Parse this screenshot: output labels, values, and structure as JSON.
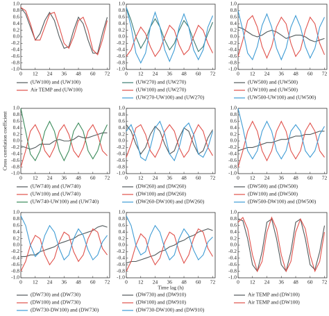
{
  "chart_data": [
    {
      "type": "line",
      "x": [
        0,
        4,
        8,
        12,
        16,
        20,
        24,
        28,
        32,
        36,
        40,
        44,
        48,
        52,
        56,
        60,
        64,
        68,
        72
      ],
      "xlim": [
        0,
        74
      ],
      "xticks": [
        0,
        12,
        24,
        36,
        48,
        60,
        72
      ],
      "ylim": [
        -1,
        1
      ],
      "yticks": [
        {
          "value": -1,
          "label": "-1.0"
        },
        -0.8,
        -0.6,
        -0.4,
        -0.2,
        {
          "value": 0,
          "label": "0.0"
        },
        0.2,
        0.4,
        0.6,
        0.8,
        {
          "value": 1,
          "label": "1.0"
        }
      ],
      "series": [
        {
          "name": "(UW100) and (UW100)",
          "color": "#50585a",
          "values": [
            0.9,
            0.7,
            0.3,
            -0.1,
            0.1,
            0.5,
            0.75,
            0.5,
            0.0,
            -0.35,
            -0.3,
            0.2,
            0.6,
            0.4,
            -0.1,
            -0.5,
            -0.5,
            0.1,
            0.6
          ]
        },
        {
          "name": "Air TEMP and (UW100)",
          "color": "#e0504a",
          "values": [
            0.9,
            0.8,
            0.4,
            -0.1,
            -0.1,
            0.3,
            0.7,
            0.75,
            0.3,
            -0.2,
            -0.35,
            0.0,
            0.5,
            0.6,
            0.2,
            -0.4,
            -0.55,
            -0.1,
            0.5
          ]
        }
      ]
    },
    {
      "type": "line",
      "x": [
        0,
        4,
        8,
        12,
        16,
        20,
        24,
        28,
        32,
        36,
        40,
        44,
        48,
        52,
        56,
        60,
        64,
        68,
        72
      ],
      "xlim": [
        0,
        74
      ],
      "xticks": [
        0,
        12,
        24,
        36,
        48,
        60,
        72
      ],
      "ylim": [
        -1,
        1
      ],
      "yticks": [
        {
          "value": -1,
          "label": "-1.0"
        },
        -0.8,
        -0.6,
        -0.4,
        -0.2,
        {
          "value": 0,
          "label": "0.0"
        },
        0.2,
        0.4,
        0.6,
        0.8,
        {
          "value": 1,
          "label": "1.0"
        }
      ],
      "series": [
        {
          "name": "(UW270) and (UW270)",
          "color": "#3a7a70",
          "values": [
            0.9,
            0.5,
            0.0,
            -0.35,
            -0.1,
            0.3,
            0.55,
            0.3,
            -0.1,
            -0.4,
            -0.2,
            0.2,
            0.5,
            0.3,
            -0.1,
            -0.45,
            -0.3,
            0.1,
            0.45
          ]
        },
        {
          "name": "(UW100) and (UW270)",
          "color": "#e0504a",
          "values": [
            -0.6,
            -0.4,
            0.0,
            0.3,
            0.1,
            -0.3,
            -0.6,
            -0.4,
            0.0,
            0.35,
            0.2,
            -0.25,
            -0.55,
            -0.4,
            0.0,
            0.35,
            0.2,
            -0.2,
            -0.5
          ]
        },
        {
          "name": "(UW270-UW100) and (UW270)",
          "color": "#3d9bd4",
          "values": [
            0.9,
            0.3,
            -0.5,
            -0.8,
            -0.5,
            0.3,
            0.75,
            0.3,
            -0.4,
            -0.75,
            -0.4,
            0.3,
            0.7,
            0.3,
            -0.4,
            -0.7,
            -0.4,
            0.3,
            0.65
          ]
        }
      ]
    },
    {
      "type": "line",
      "x": [
        0,
        4,
        8,
        12,
        16,
        20,
        24,
        28,
        32,
        36,
        40,
        44,
        48,
        52,
        56,
        60,
        64,
        68,
        72
      ],
      "xlim": [
        0,
        74
      ],
      "xticks": [
        0,
        12,
        24,
        36,
        48,
        60,
        72
      ],
      "ylim": [
        -1,
        1
      ],
      "yticks": [
        {
          "value": -1,
          "label": "-1.0"
        },
        -0.8,
        -0.6,
        -0.4,
        -0.2,
        {
          "value": 0,
          "label": "0.0"
        },
        0.2,
        0.4,
        0.6,
        0.8,
        {
          "value": 1,
          "label": "1.0"
        }
      ],
      "series": [
        {
          "name": "(UW500) and (UW500)",
          "color": "#50585a",
          "values": [
            0.3,
            0.25,
            0.15,
            0.05,
            0.0,
            0.05,
            0.15,
            0.2,
            0.15,
            0.05,
            -0.05,
            0.0,
            0.05,
            0.05,
            0.0,
            -0.1,
            -0.15,
            -0.1,
            -0.05
          ]
        },
        {
          "name": "(UW100) and (UW500)",
          "color": "#e0504a",
          "values": [
            -0.6,
            -0.1,
            0.5,
            0.65,
            0.3,
            -0.3,
            -0.65,
            -0.3,
            0.3,
            0.6,
            0.4,
            -0.2,
            -0.6,
            -0.4,
            0.2,
            0.6,
            0.4,
            -0.2,
            -0.55
          ]
        },
        {
          "name": "(UW500-UW100) and (UW500)",
          "color": "#3d9bd4",
          "values": [
            0.8,
            0.2,
            -0.5,
            -0.7,
            -0.3,
            0.35,
            0.7,
            0.3,
            -0.35,
            -0.7,
            -0.35,
            0.3,
            0.65,
            0.3,
            -0.3,
            -0.65,
            -0.35,
            0.3,
            0.6
          ]
        }
      ]
    },
    {
      "type": "line",
      "ylabel": "Cross correlation coefficient",
      "x": [
        0,
        4,
        8,
        12,
        16,
        20,
        24,
        28,
        32,
        36,
        40,
        44,
        48,
        52,
        56,
        60,
        64,
        68,
        72
      ],
      "xlim": [
        0,
        74
      ],
      "xticks": [
        0,
        12,
        24,
        36,
        48,
        60,
        72
      ],
      "ylim": [
        -1,
        1
      ],
      "yticks": [
        {
          "value": -1,
          "label": "-1.0"
        },
        -0.8,
        -0.6,
        -0.4,
        -0.2,
        {
          "value": 0,
          "label": "0.0"
        },
        0.2,
        0.4,
        0.6,
        0.8,
        {
          "value": 1,
          "label": "1.0"
        }
      ],
      "series": [
        {
          "name": "(UW740) and (UW740)",
          "color": "#50585a",
          "values": [
            -0.15,
            -0.2,
            -0.25,
            -0.2,
            -0.1,
            -0.1,
            -0.1,
            0.0,
            0.05,
            0.0,
            0.0,
            0.05,
            0.15,
            0.1,
            0.1,
            0.15,
            0.2,
            0.25,
            0.25
          ]
        },
        {
          "name": "(UW100) and (UW740)",
          "color": "#e0504a",
          "values": [
            -0.8,
            -0.3,
            0.3,
            0.5,
            0.2,
            -0.3,
            -0.5,
            -0.2,
            0.3,
            0.5,
            0.2,
            -0.3,
            -0.5,
            -0.2,
            0.3,
            0.5,
            0.2,
            -0.3,
            -0.45
          ]
        },
        {
          "name": "(UW740-UW100) and (UW740)",
          "color": "#3a8a5a",
          "values": [
            1.0,
            0.3,
            -0.4,
            -0.6,
            -0.3,
            0.3,
            0.6,
            0.3,
            -0.3,
            -0.6,
            -0.3,
            0.3,
            0.55,
            0.3,
            -0.3,
            -0.55,
            -0.3,
            0.2,
            0.5
          ]
        }
      ]
    },
    {
      "type": "line",
      "x": [
        0,
        4,
        8,
        12,
        16,
        20,
        24,
        28,
        32,
        36,
        40,
        44,
        48,
        52,
        56,
        60,
        64,
        68,
        72
      ],
      "xlim": [
        0,
        74
      ],
      "xticks": [
        0,
        12,
        24,
        36,
        48,
        60,
        72
      ],
      "ylim": [
        -1,
        1
      ],
      "yticks": [
        {
          "value": -1,
          "label": "-1.0"
        },
        -0.8,
        -0.6,
        -0.4,
        -0.2,
        {
          "value": 0,
          "label": "0.0"
        },
        0.2,
        0.4,
        0.6,
        0.8,
        {
          "value": 1,
          "label": "1.0"
        }
      ],
      "series": [
        {
          "name": "(DW260) and (DW260)",
          "color": "#50585a",
          "values": [
            0.5,
            0.3,
            -0.1,
            -0.4,
            -0.2,
            0.2,
            0.45,
            0.3,
            -0.1,
            -0.4,
            -0.3,
            0.1,
            0.4,
            0.3,
            -0.1,
            -0.4,
            -0.3,
            0.1,
            0.35
          ]
        },
        {
          "name": "(DW100) and (DW260)",
          "color": "#e0504a",
          "values": [
            -0.5,
            -0.1,
            0.4,
            0.5,
            0.2,
            -0.3,
            -0.5,
            -0.2,
            0.3,
            0.5,
            0.3,
            -0.2,
            -0.5,
            -0.3,
            0.2,
            0.5,
            0.3,
            -0.2,
            -0.45
          ]
        },
        {
          "name": "(DW260-DW100) and (DW260)",
          "color": "#3d9bd4",
          "values": [
            0.3,
            0.5,
            0.1,
            -0.5,
            -0.6,
            -0.2,
            0.4,
            0.6,
            0.2,
            -0.4,
            -0.6,
            -0.2,
            0.4,
            0.55,
            0.2,
            -0.4,
            -0.5,
            -0.2,
            0.3
          ]
        }
      ]
    },
    {
      "type": "line",
      "x": [
        0,
        4,
        8,
        12,
        16,
        20,
        24,
        28,
        32,
        36,
        40,
        44,
        48,
        52,
        56,
        60,
        64,
        68,
        72
      ],
      "xlim": [
        0,
        74
      ],
      "xticks": [
        0,
        12,
        24,
        36,
        48,
        60,
        72
      ],
      "ylim": [
        -1,
        1
      ],
      "yticks": [
        {
          "value": -1,
          "label": "-1.0"
        },
        -0.8,
        -0.6,
        -0.4,
        -0.2,
        {
          "value": 0,
          "label": "0.0"
        },
        0.2,
        0.4,
        0.6,
        0.8,
        {
          "value": 1,
          "label": "1.0"
        }
      ],
      "series": [
        {
          "name": "(DW500) and (DW500)",
          "color": "#50585a",
          "values": [
            -0.3,
            -0.25,
            -0.2,
            -0.2,
            -0.15,
            -0.1,
            -0.05,
            -0.05,
            0.0,
            0.05,
            0.05,
            0.1,
            0.15,
            0.15,
            0.2,
            0.2,
            0.25,
            0.3,
            0.3
          ]
        },
        {
          "name": "(DW100) and (DW500)",
          "color": "#e0504a",
          "values": [
            -0.8,
            -0.3,
            0.3,
            0.6,
            0.3,
            -0.3,
            -0.6,
            -0.3,
            0.3,
            0.6,
            0.3,
            -0.3,
            -0.55,
            -0.3,
            0.3,
            0.55,
            0.3,
            -0.3,
            -0.5
          ]
        },
        {
          "name": "(DW500-DW100) and (DW500)",
          "color": "#3d9bd4",
          "values": [
            1.0,
            0.4,
            -0.3,
            -0.55,
            -0.3,
            0.3,
            0.6,
            0.3,
            -0.3,
            -0.55,
            -0.3,
            0.3,
            0.5,
            0.3,
            -0.3,
            -0.5,
            -0.3,
            0.2,
            0.45
          ]
        }
      ]
    },
    {
      "type": "line",
      "x": [
        0,
        4,
        8,
        12,
        16,
        20,
        24,
        28,
        32,
        36,
        40,
        44,
        48,
        52,
        56,
        60,
        64,
        68,
        72
      ],
      "xlim": [
        0,
        74
      ],
      "xticks": [
        0,
        12,
        24,
        36,
        48,
        60,
        72
      ],
      "ylim": [
        -1,
        1
      ],
      "yticks": [
        {
          "value": -1,
          "label": "-1.0"
        },
        -0.8,
        -0.6,
        -0.4,
        -0.2,
        {
          "value": 0,
          "label": "0.0"
        },
        0.2,
        0.4,
        0.6,
        0.8,
        {
          "value": 1,
          "label": "1.0"
        }
      ],
      "series": [
        {
          "name": "(DW730) and (DW730)",
          "color": "#50585a",
          "values": [
            -0.35,
            -0.35,
            -0.3,
            -0.3,
            -0.2,
            -0.15,
            -0.1,
            -0.05,
            0.05,
            0.1,
            0.15,
            0.2,
            0.3,
            0.35,
            0.4,
            0.45,
            0.55,
            0.6,
            0.55
          ]
        },
        {
          "name": "(DW100) and (DW730)",
          "color": "#e0504a",
          "values": [
            -0.8,
            -0.5,
            0.0,
            0.3,
            0.2,
            -0.3,
            -0.6,
            -0.4,
            0.1,
            0.4,
            0.3,
            -0.2,
            -0.5,
            -0.3,
            0.2,
            0.5,
            0.4,
            -0.1,
            -0.3
          ]
        },
        {
          "name": "(DW730-DW100) and (DW730)",
          "color": "#3d9bd4",
          "values": [
            0.9,
            0.6,
            0.0,
            -0.35,
            -0.2,
            0.3,
            0.6,
            0.4,
            -0.1,
            -0.45,
            -0.3,
            0.2,
            0.5,
            0.3,
            -0.15,
            -0.45,
            -0.3,
            0.1,
            0.3
          ]
        }
      ]
    },
    {
      "type": "line",
      "xlabel": "Time lag (h)",
      "x": [
        0,
        4,
        8,
        12,
        16,
        20,
        24,
        28,
        32,
        36,
        40,
        44,
        48,
        52,
        56,
        60,
        64,
        68,
        72
      ],
      "xlim": [
        0,
        74
      ],
      "xticks": [
        0,
        12,
        24,
        36,
        48,
        60,
        72
      ],
      "ylim": [
        -1,
        1
      ],
      "yticks": [
        {
          "value": -1,
          "label": "-1.0"
        },
        -0.8,
        -0.6,
        -0.4,
        -0.2,
        {
          "value": 0,
          "label": "0.0"
        },
        0.2,
        0.4,
        0.6,
        0.8,
        {
          "value": 1,
          "label": "1.0"
        }
      ],
      "series": [
        {
          "name": "(DW730) and (DW910)",
          "color": "#50585a",
          "values": [
            -0.55,
            -0.5,
            -0.5,
            -0.45,
            -0.4,
            -0.35,
            -0.3,
            -0.2,
            -0.15,
            -0.05,
            0.0,
            0.1,
            0.15,
            0.25,
            0.3,
            0.4,
            0.45,
            0.5,
            0.45
          ]
        },
        {
          "name": "(DW100) and (DW910)",
          "color": "#e0504a",
          "values": [
            -0.8,
            -0.5,
            0.0,
            0.35,
            0.2,
            -0.3,
            -0.6,
            -0.4,
            0.1,
            0.4,
            0.3,
            -0.2,
            -0.55,
            -0.3,
            0.2,
            0.5,
            0.4,
            -0.1,
            -0.35
          ]
        },
        {
          "name": "(DW730-DW100) and (DW910)",
          "color": "#3d9bd4",
          "values": [
            0.9,
            0.6,
            0.0,
            -0.3,
            -0.2,
            0.3,
            0.6,
            0.4,
            -0.1,
            -0.45,
            -0.3,
            0.2,
            0.5,
            0.3,
            -0.15,
            -0.45,
            -0.3,
            0.1,
            0.25
          ]
        }
      ]
    },
    {
      "type": "line",
      "x": [
        0,
        4,
        8,
        12,
        16,
        20,
        24,
        28,
        32,
        36,
        40,
        44,
        48,
        52,
        56,
        60,
        64,
        68,
        72
      ],
      "xlim": [
        0,
        74
      ],
      "xticks": [
        0,
        12,
        24,
        36,
        48,
        60,
        72
      ],
      "ylim": [
        -1,
        1
      ],
      "yticks": [
        {
          "value": -1,
          "label": "-1.0"
        },
        -0.8,
        -0.6,
        -0.4,
        -0.2,
        {
          "value": 0,
          "label": "0.0"
        },
        0.2,
        0.4,
        0.6,
        0.8,
        {
          "value": 1,
          "label": "1.0"
        }
      ],
      "series": [
        {
          "name": "Air TEMP and (DW100)",
          "color": "#50585a",
          "values": [
            0.8,
            0.75,
            0.2,
            -0.6,
            -0.8,
            -0.2,
            0.7,
            0.8,
            0.2,
            -0.6,
            -0.8,
            -0.2,
            0.7,
            0.8,
            0.2,
            -0.6,
            -0.75,
            -0.2,
            0.6
          ]
        },
        {
          "name": "Air TEMP and (DW100)",
          "color": "#e0504a",
          "values": [
            0.7,
            0.85,
            0.5,
            -0.3,
            -0.8,
            -0.5,
            0.4,
            0.85,
            0.5,
            -0.3,
            -0.8,
            -0.5,
            0.4,
            0.8,
            0.5,
            -0.3,
            -0.8,
            -0.5,
            0.4
          ]
        }
      ]
    }
  ]
}
